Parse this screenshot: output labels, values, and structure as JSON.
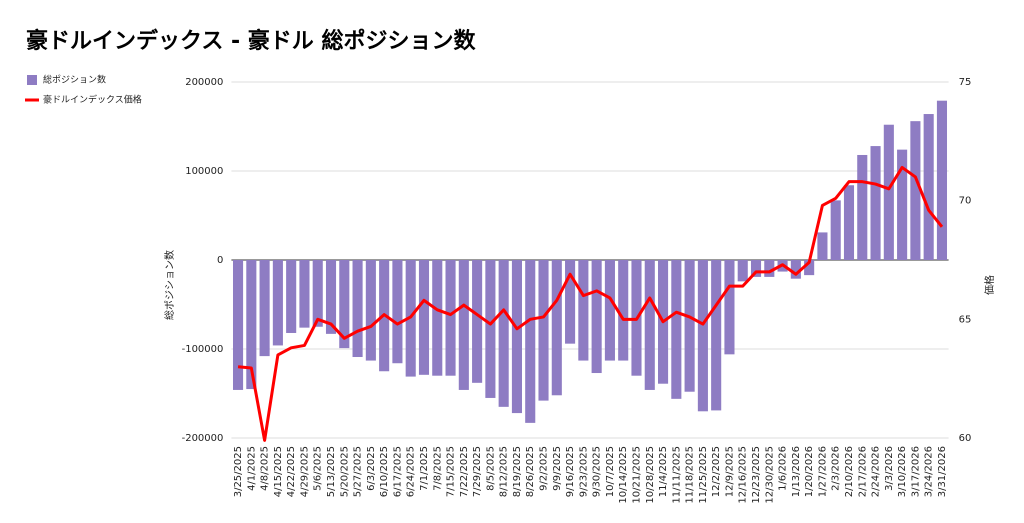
{
  "chart_data": {
    "type": "bar-line",
    "title": "豪ドルインデックス - 豪ドル 総ポジション数",
    "y_label": "総ポジション数",
    "y2_label": "価格",
    "categories": [
      "3/25/2025",
      "4/1/2025",
      "4/8/2025",
      "4/15/2025",
      "4/22/2025",
      "4/29/2025",
      "5/6/2025",
      "5/13/2025",
      "5/20/2025",
      "5/27/2025",
      "6/3/2025",
      "6/10/2025",
      "6/17/2025",
      "6/24/2025",
      "7/1/2025",
      "7/8/2025",
      "7/15/2025",
      "7/22/2025",
      "7/29/2025",
      "8/5/2025",
      "8/12/2025",
      "8/19/2025",
      "8/26/2025",
      "9/2/2025",
      "9/9/2025",
      "9/16/2025",
      "9/23/2025",
      "9/30/2025",
      "10/7/2025",
      "10/14/2025",
      "10/21/2025",
      "10/28/2025",
      "11/4/2025",
      "11/11/2025",
      "11/18/2025",
      "11/25/2025",
      "12/2/2025",
      "12/9/2025",
      "12/16/2025",
      "12/23/2025",
      "12/30/2025",
      "1/6/2026",
      "1/13/2026",
      "1/20/2026",
      "1/27/2026",
      "2/3/2026",
      "2/10/2026",
      "2/17/2026",
      "2/24/2026",
      "3/3/2026",
      "3/10/2026",
      "3/17/2026",
      "3/24/2026",
      "3/31/2026"
    ],
    "series": [
      {
        "name": "総ポジション数",
        "type": "bar",
        "color": "#8e7cc3",
        "values": [
          -146000,
          -145000,
          -108000,
          -96000,
          -82000,
          -76000,
          -75000,
          -83000,
          -99000,
          -109000,
          -113000,
          -125000,
          -116000,
          -131000,
          -129000,
          -130000,
          -130000,
          -146000,
          -138000,
          -155000,
          -165000,
          -172000,
          -183000,
          -158000,
          -152000,
          -94000,
          -113000,
          -127000,
          -113000,
          -113000,
          -130000,
          -146000,
          -139000,
          -156000,
          -148000,
          -170000,
          -169000,
          -106000,
          -24000,
          -19000,
          -19000,
          -13000,
          -21000,
          -17000,
          31000,
          67000,
          84000,
          118000,
          128000,
          152000,
          124000,
          156000,
          164000,
          179000
        ]
      },
      {
        "name": "豪ドルインデックス価格",
        "type": "line",
        "axis": "y2",
        "color": "#ff0000",
        "values": [
          63.0,
          62.95,
          59.9,
          63.5,
          63.8,
          63.9,
          65.0,
          64.8,
          64.2,
          64.5,
          64.7,
          65.2,
          64.8,
          65.1,
          65.8,
          65.4,
          65.2,
          65.6,
          65.2,
          64.8,
          65.4,
          64.6,
          65.0,
          65.1,
          65.8,
          66.9,
          66.0,
          66.2,
          65.9,
          65.0,
          65.0,
          65.9,
          64.9,
          65.3,
          65.1,
          64.8,
          65.6,
          66.4,
          66.4,
          67.0,
          67.0,
          67.3,
          66.9,
          67.4,
          69.8,
          70.1,
          70.8,
          70.8,
          70.7,
          70.5,
          71.4,
          71.0,
          69.6,
          68.9
        ]
      }
    ],
    "ylim": [
      -200000,
      200000
    ],
    "yticks": [
      -200000,
      -100000,
      0,
      100000,
      200000
    ],
    "y2lim": [
      60,
      75
    ],
    "y2ticks": [
      60,
      65,
      70,
      75
    ],
    "grid": true,
    "legend": "top-left"
  }
}
